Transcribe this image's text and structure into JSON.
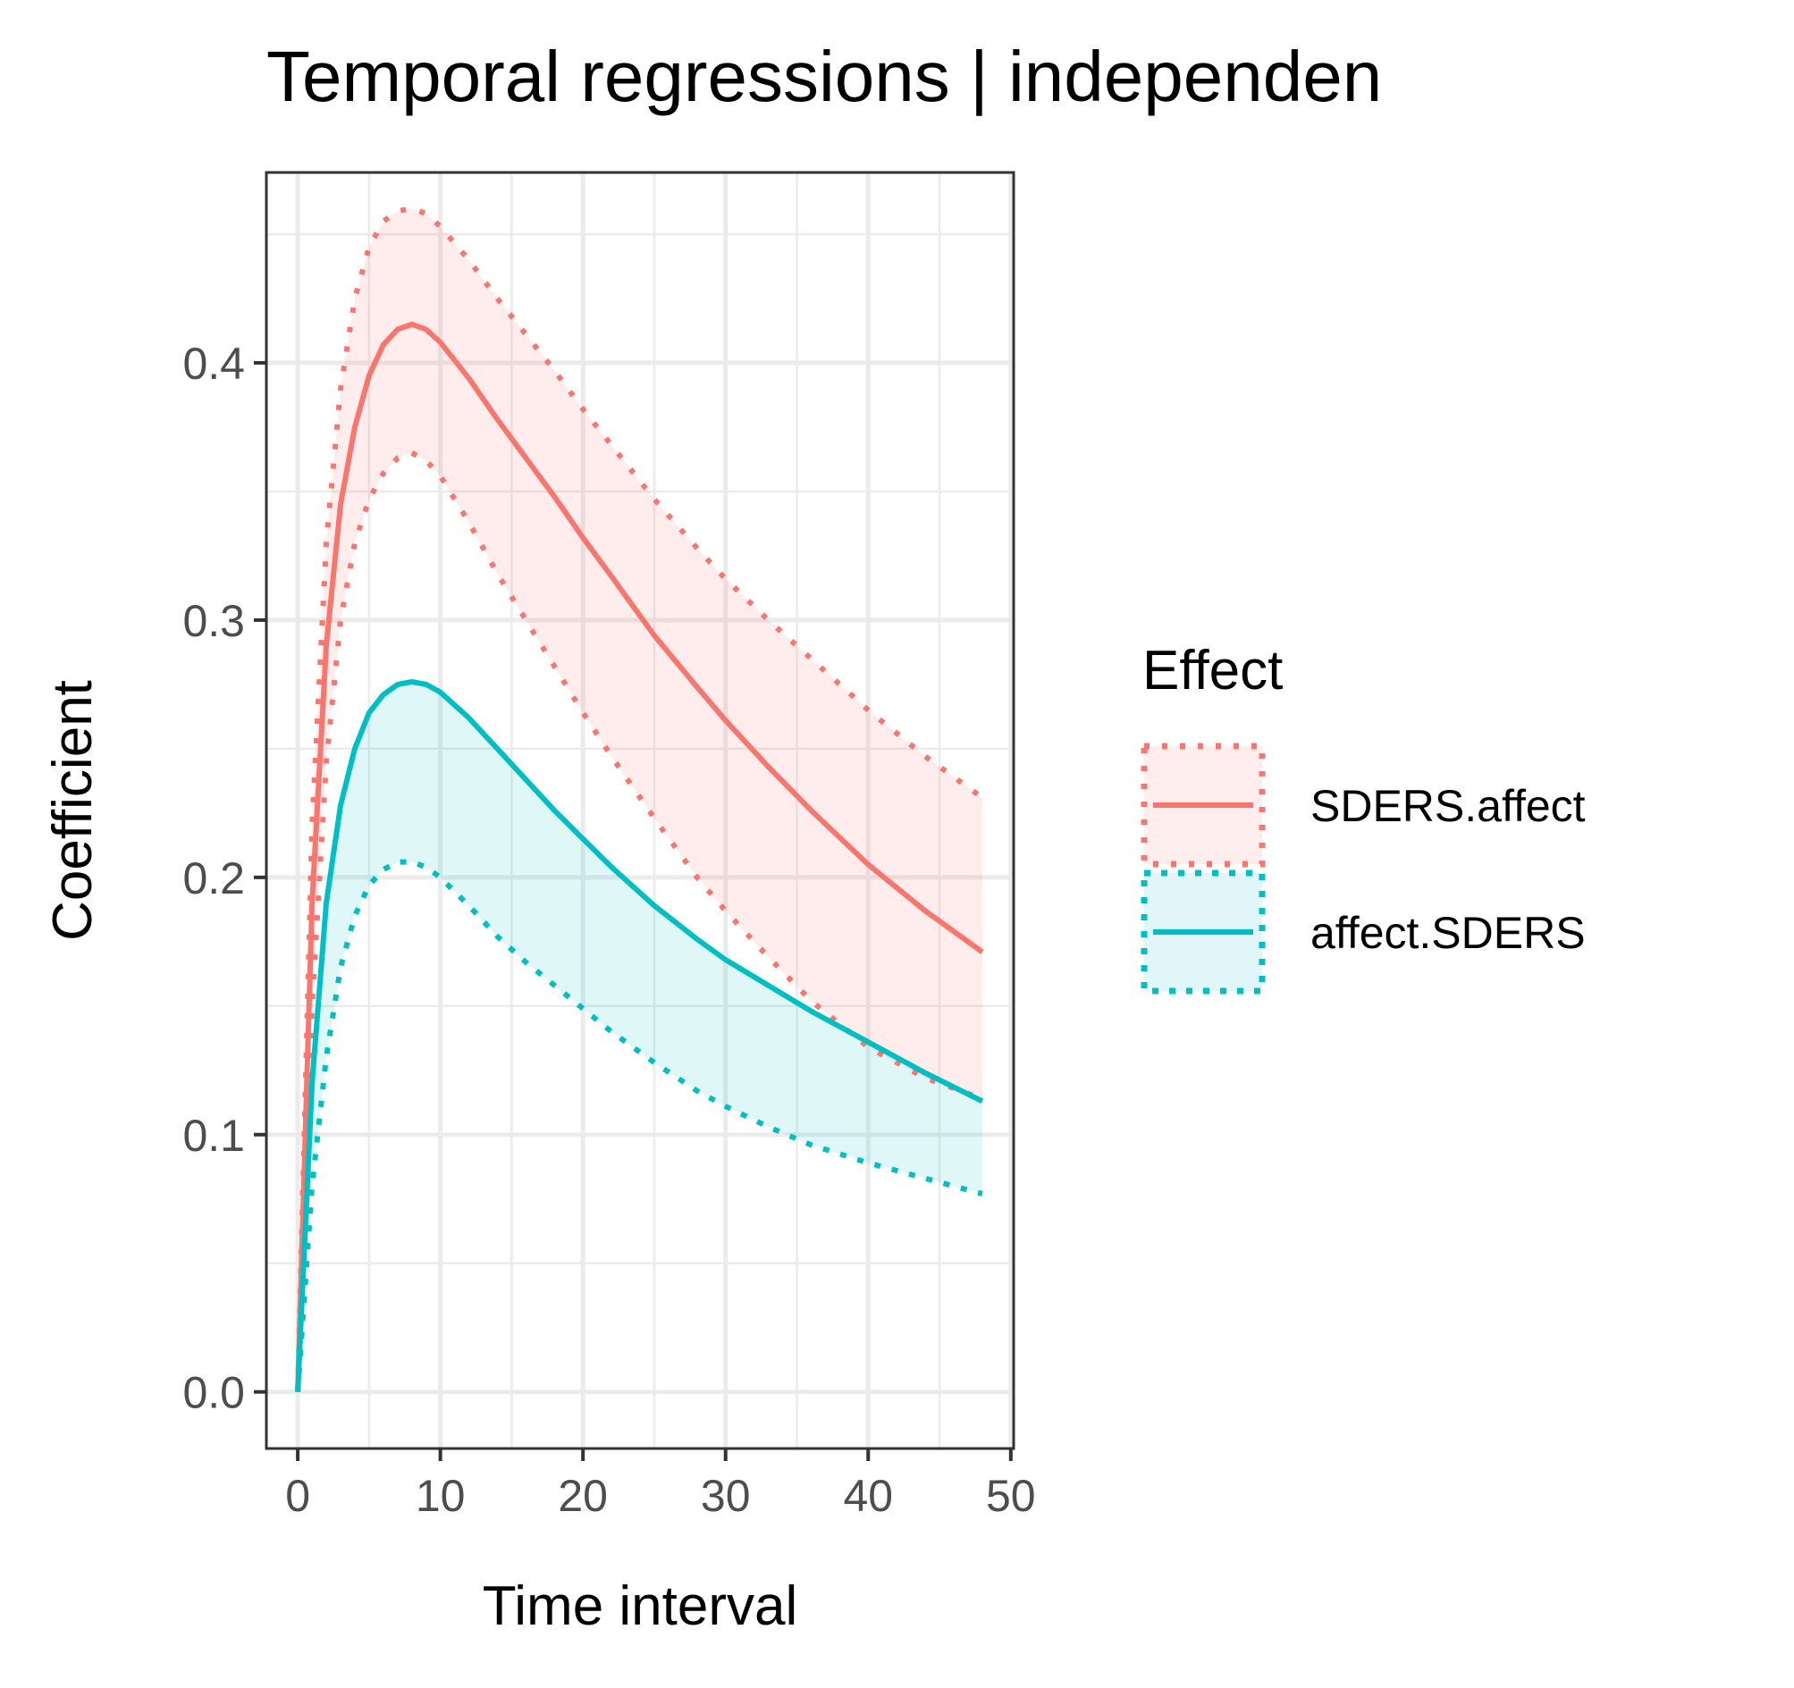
{
  "chart_data": {
    "type": "line",
    "title": "Temporal regressions | independen",
    "xlabel": "Time interval",
    "ylabel": "Coefficient",
    "xlim": [
      -2.2,
      50.2
    ],
    "ylim": [
      -0.022,
      0.474
    ],
    "x_ticks": [
      0,
      10,
      20,
      30,
      40,
      50
    ],
    "x_tick_labels": [
      "0",
      "10",
      "20",
      "30",
      "40",
      "50"
    ],
    "y_ticks": [
      0.0,
      0.1,
      0.2,
      0.3,
      0.4
    ],
    "y_tick_labels": [
      "0.0",
      "0.1",
      "0.2",
      "0.3",
      "0.4"
    ],
    "grid": true,
    "legend": {
      "title": "Effect",
      "position": "right"
    },
    "x": [
      0,
      1,
      2,
      3,
      4,
      5,
      6,
      7,
      8,
      9,
      10,
      12,
      14,
      16,
      18,
      20,
      22,
      25,
      28,
      30,
      33,
      36,
      40,
      44,
      48
    ],
    "series": [
      {
        "name": "SDERS.affect",
        "color": "#F8766D",
        "fill": "#FFEEED",
        "estimate": [
          0.0,
          0.19,
          0.29,
          0.345,
          0.375,
          0.395,
          0.407,
          0.413,
          0.415,
          0.413,
          0.408,
          0.394,
          0.378,
          0.363,
          0.348,
          0.332,
          0.317,
          0.294,
          0.274,
          0.261,
          0.243,
          0.226,
          0.205,
          0.187,
          0.171
        ],
        "lower": [
          0.0,
          0.15,
          0.245,
          0.3,
          0.33,
          0.347,
          0.357,
          0.363,
          0.365,
          0.362,
          0.356,
          0.338,
          0.318,
          0.3,
          0.282,
          0.264,
          0.247,
          0.223,
          0.2,
          0.187,
          0.169,
          0.152,
          0.134,
          0.122,
          0.114
        ],
        "upper": [
          0.0,
          0.22,
          0.33,
          0.39,
          0.425,
          0.445,
          0.455,
          0.459,
          0.46,
          0.458,
          0.453,
          0.44,
          0.425,
          0.411,
          0.397,
          0.382,
          0.368,
          0.347,
          0.328,
          0.316,
          0.3,
          0.285,
          0.265,
          0.247,
          0.231
        ]
      },
      {
        "name": "affect.SDERS",
        "color": "#00BFC4",
        "fill": "#E1F6F8",
        "estimate": [
          0.0,
          0.12,
          0.19,
          0.228,
          0.25,
          0.264,
          0.271,
          0.275,
          0.276,
          0.275,
          0.272,
          0.262,
          0.25,
          0.238,
          0.226,
          0.215,
          0.204,
          0.189,
          0.176,
          0.168,
          0.158,
          0.148,
          0.136,
          0.124,
          0.113
        ],
        "lower": [
          0.0,
          0.08,
          0.13,
          0.165,
          0.185,
          0.197,
          0.203,
          0.206,
          0.206,
          0.204,
          0.2,
          0.189,
          0.177,
          0.167,
          0.158,
          0.149,
          0.14,
          0.128,
          0.117,
          0.111,
          0.103,
          0.096,
          0.089,
          0.083,
          0.077
        ]
      }
    ]
  }
}
